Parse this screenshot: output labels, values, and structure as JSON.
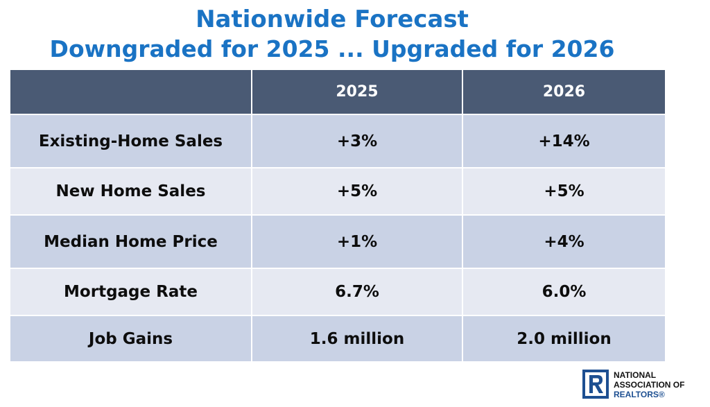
{
  "header": {
    "title_line1": "Nationwide Forecast",
    "title_line2": "Downgraded for 2025 ... Upgraded for 2026"
  },
  "table": {
    "columns": [
      "",
      "2025",
      "2026"
    ],
    "rows": [
      {
        "label": "Existing-Home Sales",
        "v2025": "+3%",
        "v2026": "+14%"
      },
      {
        "label": "New Home Sales",
        "v2025": "+5%",
        "v2026": "+5%"
      },
      {
        "label": "Median Home Price",
        "v2025": "+1%",
        "v2026": "+4%"
      },
      {
        "label": "Mortgage Rate",
        "v2025": "6.7%",
        "v2026": "6.0%"
      },
      {
        "label": "Job Gains",
        "v2025": "1.6 million",
        "v2026": "2.0 million"
      }
    ]
  },
  "logo": {
    "line1": "NATIONAL",
    "line2": "ASSOCIATION OF",
    "line3": "REALTORS®",
    "mark_icon": "realtor-r-logo-icon"
  },
  "colors": {
    "title": "#1a73c4",
    "header_bg": "#4a5a74",
    "row_dark": "#c9d2e5",
    "row_light": "#e6e9f2",
    "brand_blue": "#1d4f91"
  }
}
